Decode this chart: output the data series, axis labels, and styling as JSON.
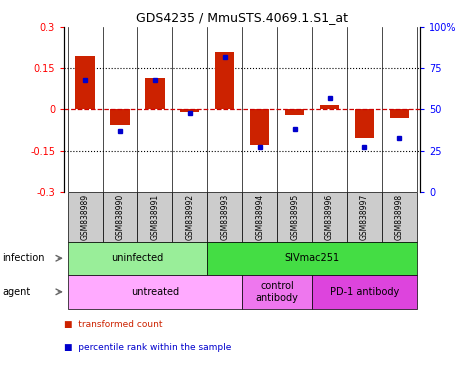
{
  "title": "GDS4235 / MmuSTS.4069.1.S1_at",
  "samples": [
    "GSM838989",
    "GSM838990",
    "GSM838991",
    "GSM838992",
    "GSM838993",
    "GSM838994",
    "GSM838995",
    "GSM838996",
    "GSM838997",
    "GSM838998"
  ],
  "red_bars": [
    0.195,
    -0.055,
    0.115,
    -0.01,
    0.21,
    -0.13,
    -0.02,
    0.015,
    -0.105,
    -0.03
  ],
  "blue_dots": [
    68,
    37,
    68,
    48,
    82,
    27,
    38,
    57,
    27,
    33
  ],
  "ylim_left": [
    -0.3,
    0.3
  ],
  "ylim_right": [
    0,
    100
  ],
  "yticks_left": [
    -0.3,
    -0.15,
    0,
    0.15,
    0.3
  ],
  "yticks_right": [
    0,
    25,
    50,
    75,
    100
  ],
  "ytick_labels_left": [
    "-0.3",
    "-0.15",
    "0",
    "0.15",
    "0.3"
  ],
  "ytick_labels_right": [
    "0",
    "25",
    "50",
    "75",
    "100%"
  ],
  "hlines": [
    0.15,
    -0.15
  ],
  "bar_color": "#cc2200",
  "dot_color": "#0000cc",
  "zero_line_color": "#cc0000",
  "infection_groups": [
    {
      "label": "uninfected",
      "start": 0,
      "end": 4,
      "color": "#99ee99"
    },
    {
      "label": "SIVmac251",
      "start": 4,
      "end": 10,
      "color": "#44dd44"
    }
  ],
  "agent_groups": [
    {
      "label": "untreated",
      "start": 0,
      "end": 5,
      "color": "#ffaaff"
    },
    {
      "label": "control\nantibody",
      "start": 5,
      "end": 7,
      "color": "#ee77ee"
    },
    {
      "label": "PD-1 antibody",
      "start": 7,
      "end": 10,
      "color": "#dd44dd"
    }
  ],
  "legend_items": [
    {
      "label": "transformed count",
      "color": "#cc2200"
    },
    {
      "label": "percentile rank within the sample",
      "color": "#0000cc"
    }
  ],
  "infection_label": "infection",
  "agent_label": "agent",
  "sample_bg_color": "#cccccc",
  "bar_width": 0.55
}
